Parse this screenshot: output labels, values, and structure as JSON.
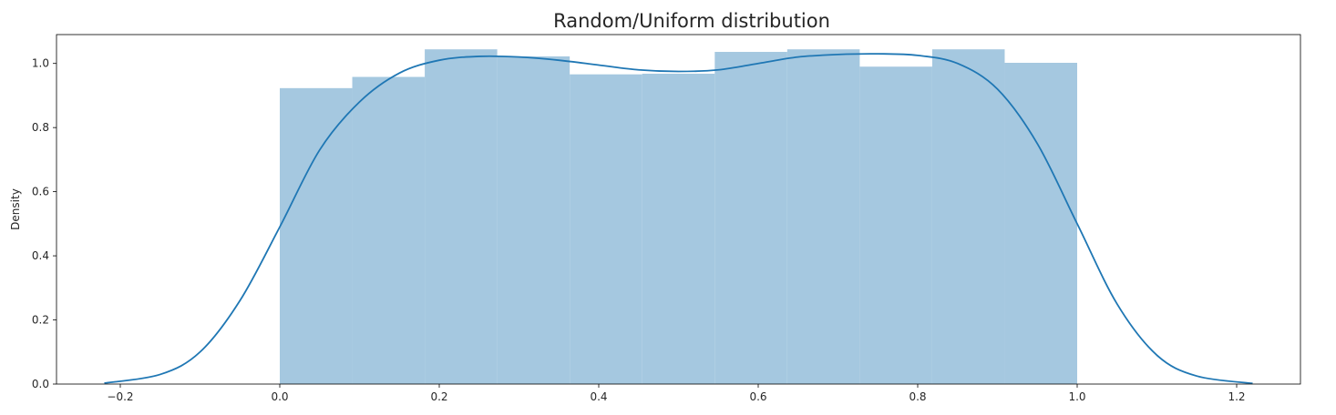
{
  "chart_data": {
    "type": "bar",
    "title": "Random/Uniform distribution",
    "xlabel": "",
    "ylabel": "Density",
    "xlim": [
      -0.28,
      1.28
    ],
    "ylim": [
      0,
      1.09
    ],
    "grid": false,
    "legend": "none",
    "bar_color": "#a5c8e0",
    "line_color": "#1f77b4",
    "x_ticks": [
      -0.2,
      0.0,
      0.2,
      0.4,
      0.6,
      0.8,
      1.0,
      1.2
    ],
    "x_tick_labels": [
      "−0.2",
      "0.0",
      "0.2",
      "0.4",
      "0.6",
      "0.8",
      "1.0",
      "1.2"
    ],
    "y_ticks": [
      0.0,
      0.2,
      0.4,
      0.6,
      0.8,
      1.0
    ],
    "y_tick_labels": [
      "0.0",
      "0.2",
      "0.4",
      "0.6",
      "0.8",
      "1.0"
    ],
    "histogram": {
      "bin_edges": [
        0.0,
        0.0909,
        0.1818,
        0.2727,
        0.3636,
        0.4545,
        0.5455,
        0.6364,
        0.7273,
        0.8182,
        0.9091,
        1.0
      ],
      "values": [
        0.923,
        0.958,
        1.044,
        1.022,
        0.966,
        0.968,
        1.036,
        1.044,
        0.99,
        1.044,
        1.002
      ]
    },
    "kde": {
      "x": [
        -0.22,
        -0.15,
        -0.1,
        -0.05,
        0.0,
        0.05,
        0.1,
        0.15,
        0.2,
        0.25,
        0.3,
        0.35,
        0.4,
        0.45,
        0.5,
        0.55,
        0.6,
        0.65,
        0.7,
        0.75,
        0.8,
        0.85,
        0.9,
        0.95,
        1.0,
        1.05,
        1.1,
        1.15,
        1.22
      ],
      "y": [
        0.003,
        0.03,
        0.1,
        0.26,
        0.49,
        0.73,
        0.88,
        0.97,
        1.01,
        1.022,
        1.02,
        1.01,
        0.995,
        0.98,
        0.975,
        0.98,
        1.0,
        1.02,
        1.028,
        1.03,
        1.025,
        1.0,
        0.92,
        0.75,
        0.5,
        0.25,
        0.09,
        0.025,
        0.002
      ]
    }
  }
}
